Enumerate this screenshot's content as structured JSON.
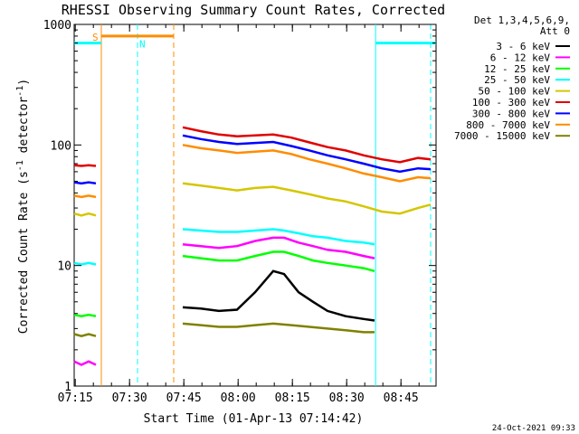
{
  "chart_data": {
    "type": "line",
    "title": "RHESSI Observing Summary Count Rates, Corrected",
    "xlabel": "Start Time (01-Apr-13 07:14:42)",
    "ylabel_main": "Corrected Count Rate (s",
    "ylabel_sup": "-1",
    "ylabel_tail": " detector",
    "ylabel_sup2": "-1",
    "ylabel_close": ")",
    "y_scale": "log",
    "ylim": [
      1,
      1000
    ],
    "xlim_minutes": [
      0,
      100
    ],
    "x_tick_labels": [
      {
        "label": "07:15",
        "t": 0.3
      },
      {
        "label": "07:30",
        "t": 15.3
      },
      {
        "label": "07:45",
        "t": 30.3
      },
      {
        "label": "08:00",
        "t": 45.3
      },
      {
        "label": "08:15",
        "t": 60.3
      },
      {
        "label": "08:30",
        "t": 75.3
      },
      {
        "label": "08:45",
        "t": 90.3
      }
    ],
    "y_tick_labels": [
      {
        "label": "1",
        "v": 1
      },
      {
        "label": "10",
        "v": 10
      },
      {
        "label": "100",
        "v": 100
      },
      {
        "label": "1000",
        "v": 1000
      }
    ],
    "legend": {
      "header_line1": "Det 1,3,4,5,6,9,",
      "header_line2": "Att 0",
      "entries": [
        {
          "label": "3 - 6 keV",
          "color": "#000000"
        },
        {
          "label": "6 - 12 keV",
          "color": "#ff00ff"
        },
        {
          "label": "12 - 25 keV",
          "color": "#00ff00"
        },
        {
          "label": "25 - 50 keV",
          "color": "#00ffff"
        },
        {
          "label": "50 - 100 keV",
          "color": "#d4c600"
        },
        {
          "label": "100 - 300 keV",
          "color": "#e00000"
        },
        {
          "label": "300 - 800 keV",
          "color": "#0000ff"
        },
        {
          "label": "800 - 7000 keV",
          "color": "#ff8c00"
        },
        {
          "label": "7000 - 15000 keV",
          "color": "#808000"
        }
      ]
    },
    "annotations": {
      "saa_label": "S",
      "night_label": "N",
      "saa_bar": {
        "start": 7.5,
        "end": 27.5,
        "level": 800,
        "color": "#ff8c00"
      },
      "night_bars": [
        {
          "start": 0,
          "end": 7.5,
          "level": 700,
          "color": "#00ffff"
        },
        {
          "start": 83.3,
          "end": 100,
          "level": 700,
          "color": "#00ffff"
        }
      ],
      "vlines": [
        {
          "t": 7.5,
          "color": "#ff8c00",
          "style": "solid"
        },
        {
          "t": 17.5,
          "color": "#00ffff",
          "style": "dashed"
        },
        {
          "t": 27.5,
          "color": "#ff8c00",
          "style": "dashed"
        },
        {
          "t": 83.3,
          "color": "#00ffff",
          "style": "solid"
        },
        {
          "t": 98.5,
          "color": "#00ffff",
          "style": "dashed"
        }
      ]
    },
    "series": [
      {
        "name": "3 - 6 keV",
        "color": "#000000",
        "segments": [
          {
            "x": [
              30,
              35,
              40,
              45,
              50,
              55,
              58,
              62,
              66,
              70,
              75,
              80,
              83
            ],
            "y": [
              4.5,
              4.4,
              4.2,
              4.3,
              6,
              9,
              8.5,
              6,
              5,
              4.2,
              3.8,
              3.6,
              3.5
            ]
          }
        ]
      },
      {
        "name": "6 - 12 keV",
        "color": "#ff00ff",
        "segments": [
          {
            "x": [
              0,
              2,
              4,
              6
            ],
            "y": [
              1.6,
              1.5,
              1.6,
              1.5
            ]
          },
          {
            "x": [
              30,
              35,
              40,
              45,
              50,
              55,
              58,
              62,
              66,
              70,
              75,
              80,
              83
            ],
            "y": [
              15,
              14.5,
              14,
              14.5,
              16,
              17,
              17,
              15.5,
              14.5,
              13.5,
              13,
              12,
              11.5
            ]
          }
        ]
      },
      {
        "name": "12 - 25 keV",
        "color": "#00ff00",
        "segments": [
          {
            "x": [
              0,
              2,
              4,
              6
            ],
            "y": [
              3.9,
              3.8,
              3.9,
              3.8
            ]
          },
          {
            "x": [
              30,
              35,
              40,
              45,
              50,
              55,
              58,
              62,
              66,
              70,
              75,
              80,
              83
            ],
            "y": [
              12,
              11.5,
              11,
              11,
              12,
              13,
              13,
              12,
              11,
              10.5,
              10,
              9.5,
              9
            ]
          }
        ]
      },
      {
        "name": "25 - 50 keV",
        "color": "#00ffff",
        "segments": [
          {
            "x": [
              0,
              2,
              4,
              6
            ],
            "y": [
              10.5,
              10.2,
              10.5,
              10.2
            ]
          },
          {
            "x": [
              30,
              35,
              40,
              45,
              50,
              55,
              58,
              62,
              66,
              70,
              75,
              80,
              83
            ],
            "y": [
              20,
              19.5,
              19,
              19,
              19.5,
              20,
              19.5,
              18.5,
              17.5,
              17,
              16,
              15.5,
              15
            ]
          }
        ]
      },
      {
        "name": "50 - 100 keV",
        "color": "#d4c600",
        "segments": [
          {
            "x": [
              0,
              2,
              4,
              6
            ],
            "y": [
              27,
              26,
              27,
              26
            ]
          },
          {
            "x": [
              30,
              35,
              40,
              45,
              50,
              55,
              60,
              65,
              70,
              75,
              80,
              85,
              90,
              95,
              98.5
            ],
            "y": [
              48,
              46,
              44,
              42,
              44,
              45,
              42,
              39,
              36,
              34,
              31,
              28,
              27,
              30,
              32
            ]
          }
        ]
      },
      {
        "name": "100 - 300 keV",
        "color": "#e00000",
        "segments": [
          {
            "x": [
              0,
              2,
              4,
              6
            ],
            "y": [
              68,
              67,
              68,
              67
            ]
          },
          {
            "x": [
              30,
              35,
              40,
              45,
              50,
              55,
              60,
              65,
              70,
              75,
              80,
              85,
              90,
              95,
              98.5
            ],
            "y": [
              140,
              130,
              122,
              118,
              120,
              122,
              115,
              105,
              96,
              90,
              82,
              76,
              72,
              78,
              76
            ]
          }
        ]
      },
      {
        "name": "300 - 800 keV",
        "color": "#0000ff",
        "segments": [
          {
            "x": [
              0,
              2,
              4,
              6
            ],
            "y": [
              49,
              48,
              49,
              48
            ]
          },
          {
            "x": [
              30,
              35,
              40,
              45,
              50,
              55,
              60,
              65,
              70,
              75,
              80,
              85,
              90,
              95,
              98.5
            ],
            "y": [
              120,
              112,
              106,
              102,
              104,
              106,
              98,
              90,
              82,
              76,
              70,
              64,
              60,
              64,
              63
            ]
          }
        ]
      },
      {
        "name": "800 - 7000 keV",
        "color": "#ff8c00",
        "segments": [
          {
            "x": [
              0,
              2,
              4,
              6
            ],
            "y": [
              38,
              37,
              38,
              37
            ]
          },
          {
            "x": [
              30,
              35,
              40,
              45,
              50,
              55,
              60,
              65,
              70,
              75,
              80,
              85,
              90,
              95,
              98.5
            ],
            "y": [
              100,
              94,
              90,
              86,
              88,
              90,
              84,
              76,
              70,
              64,
              58,
              54,
              50,
              54,
              53
            ]
          }
        ]
      },
      {
        "name": "7000 - 15000 keV",
        "color": "#808000",
        "segments": [
          {
            "x": [
              0,
              2,
              4,
              6
            ],
            "y": [
              2.7,
              2.6,
              2.7,
              2.6
            ]
          },
          {
            "x": [
              30,
              35,
              40,
              45,
              50,
              55,
              60,
              65,
              70,
              75,
              80,
              83
            ],
            "y": [
              3.3,
              3.2,
              3.1,
              3.1,
              3.2,
              3.3,
              3.2,
              3.1,
              3.0,
              2.9,
              2.8,
              2.8
            ]
          }
        ]
      }
    ]
  },
  "footer": {
    "timestamp": "24-Oct-2021 09:33"
  }
}
